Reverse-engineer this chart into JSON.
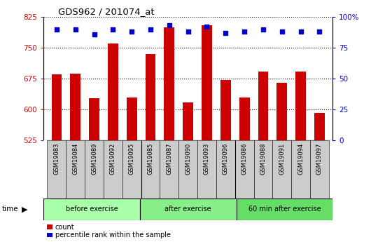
{
  "title": "GDS962 / 201074_at",
  "samples": [
    "GSM19083",
    "GSM19084",
    "GSM19089",
    "GSM19092",
    "GSM19095",
    "GSM19085",
    "GSM19087",
    "GSM19090",
    "GSM19093",
    "GSM19096",
    "GSM19086",
    "GSM19088",
    "GSM19091",
    "GSM19094",
    "GSM19097"
  ],
  "counts": [
    685,
    687,
    628,
    760,
    630,
    735,
    800,
    617,
    805,
    672,
    630,
    693,
    665,
    692,
    592
  ],
  "percentile": [
    90,
    90,
    86,
    90,
    88,
    90,
    93,
    88,
    92,
    87,
    88,
    90,
    88,
    88,
    88
  ],
  "groups": [
    {
      "label": "before exercise",
      "start": 0,
      "end": 5,
      "color": "#aaffaa"
    },
    {
      "label": "after exercise",
      "start": 5,
      "end": 10,
      "color": "#88ee88"
    },
    {
      "label": "60 min after exercise",
      "start": 10,
      "end": 15,
      "color": "#66dd66"
    }
  ],
  "ylim_left": [
    525,
    825
  ],
  "ylim_right": [
    0,
    100
  ],
  "yticks_left": [
    525,
    600,
    675,
    750,
    825
  ],
  "yticks_right": [
    0,
    25,
    50,
    75,
    100
  ],
  "right_tick_labels": [
    "0",
    "25",
    "50",
    "75",
    "100%"
  ],
  "bar_color": "#cc0000",
  "dot_color": "#0000cc",
  "grid_color": "#000000",
  "tick_label_color_left": "#cc0000",
  "tick_label_color_right": "#0000cc",
  "bar_width": 0.55,
  "legend_count_label": "count",
  "legend_pct_label": "percentile rank within the sample",
  "time_label": "time"
}
